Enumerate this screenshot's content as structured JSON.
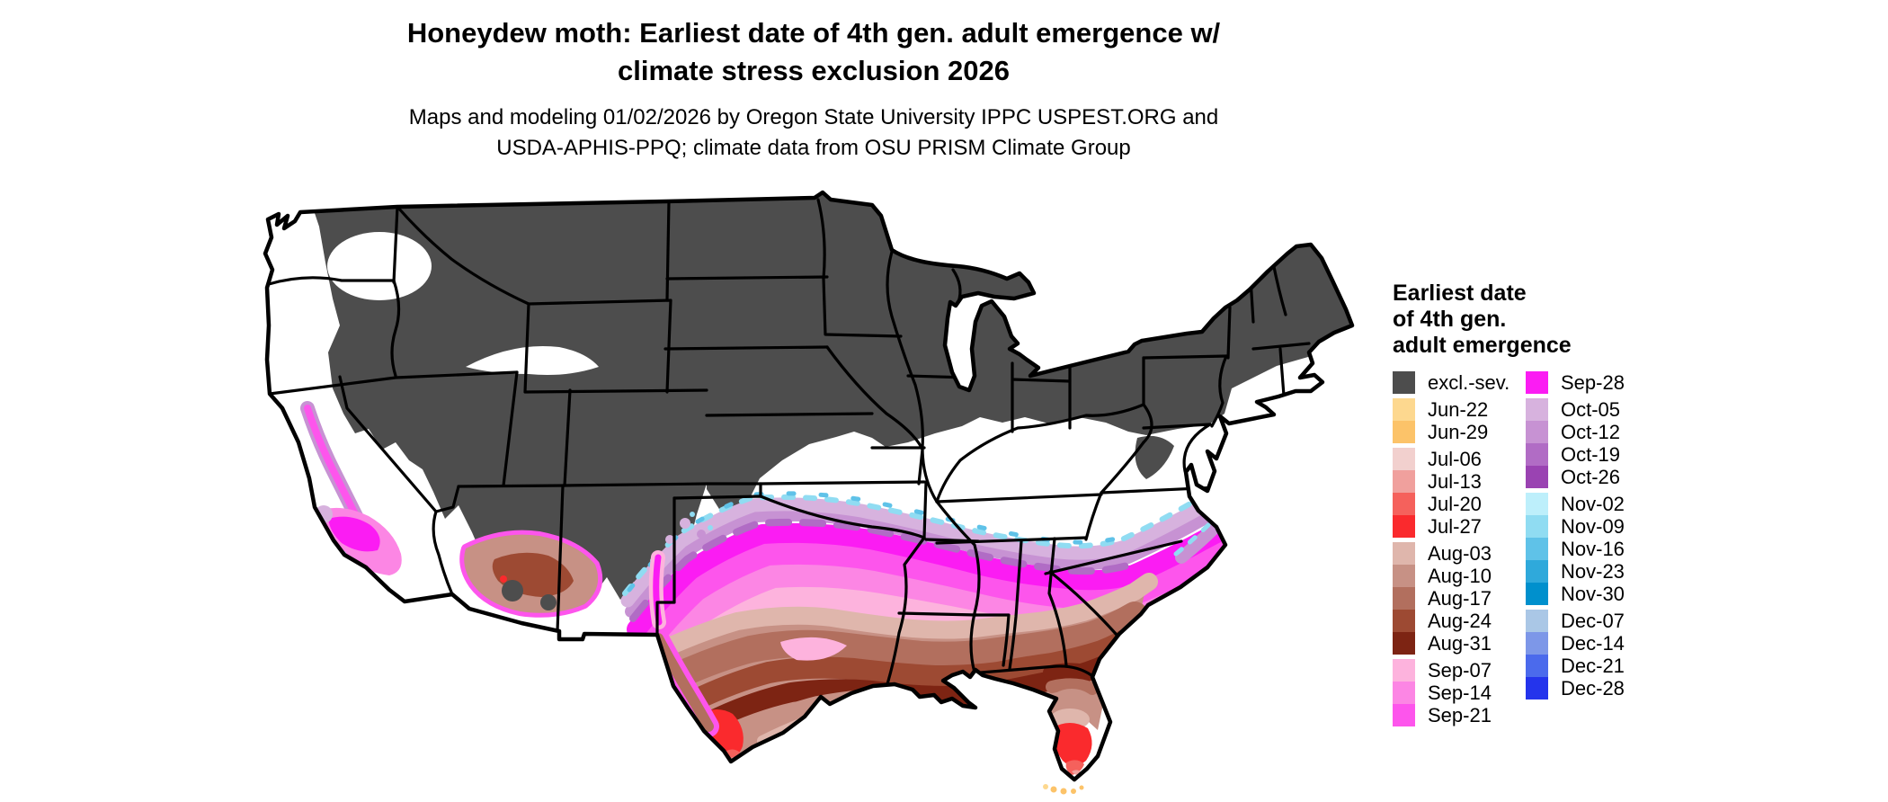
{
  "page": {
    "background": "#ffffff"
  },
  "title": {
    "line1": "Honeydew moth: Earliest date of 4th gen. adult emergence w/",
    "line2": "climate stress exclusion 2026"
  },
  "subtitle": {
    "line1": "Maps and modeling 01/02/2026 by Oregon State University IPPC USPEST.ORG and",
    "line2": "USDA-APHIS-PPQ; climate data from OSU PRISM Climate Group"
  },
  "legend": {
    "title_line1": "Earliest date",
    "title_line2": "of 4th gen.",
    "title_line3": "adult emergence",
    "left": [
      {
        "label": "excl.-sev.",
        "color": "#4d4d4d"
      },
      {
        "label": "Jun-22",
        "color": "#fdd88f"
      },
      {
        "label": "Jun-29",
        "color": "#fcc369"
      },
      {
        "label": "Jul-06",
        "color": "#f2d0ce"
      },
      {
        "label": "Jul-13",
        "color": "#f0a09d"
      },
      {
        "label": "Jul-20",
        "color": "#f5615c"
      },
      {
        "label": "Jul-27",
        "color": "#fa2a2d"
      },
      {
        "label": "Aug-03",
        "color": "#dfb6ac"
      },
      {
        "label": "Aug-10",
        "color": "#c79185"
      },
      {
        "label": "Aug-17",
        "color": "#b26f5e"
      },
      {
        "label": "Aug-24",
        "color": "#9d4a33"
      },
      {
        "label": "Aug-31",
        "color": "#7d2413"
      },
      {
        "label": "Sep-07",
        "color": "#fdb3dd"
      },
      {
        "label": "Sep-14",
        "color": "#fc86e4"
      },
      {
        "label": "Sep-21",
        "color": "#fd55ec"
      }
    ],
    "right": [
      {
        "label": "Sep-28",
        "color": "#fb1cf3"
      },
      {
        "label": "Oct-05",
        "color": "#d7b2de"
      },
      {
        "label": "Oct-12",
        "color": "#c792d3"
      },
      {
        "label": "Oct-19",
        "color": "#b16cc5"
      },
      {
        "label": "Oct-26",
        "color": "#9a43b2"
      },
      {
        "label": "Nov-02",
        "color": "#bdeffb"
      },
      {
        "label": "Nov-09",
        "color": "#90dcf2"
      },
      {
        "label": "Nov-16",
        "color": "#5fc2e8"
      },
      {
        "label": "Nov-23",
        "color": "#2fa9db"
      },
      {
        "label": "Nov-30",
        "color": "#0090cd"
      },
      {
        "label": "Dec-07",
        "color": "#aac7e6"
      },
      {
        "label": "Dec-14",
        "color": "#7d97e8"
      },
      {
        "label": "Dec-21",
        "color": "#4b6aec"
      },
      {
        "label": "Dec-28",
        "color": "#2434ec"
      }
    ]
  },
  "map": {
    "no_emergence_fill": "#ffffff",
    "excluded_fill": "#4d4d4d",
    "border_color": "#000000"
  }
}
